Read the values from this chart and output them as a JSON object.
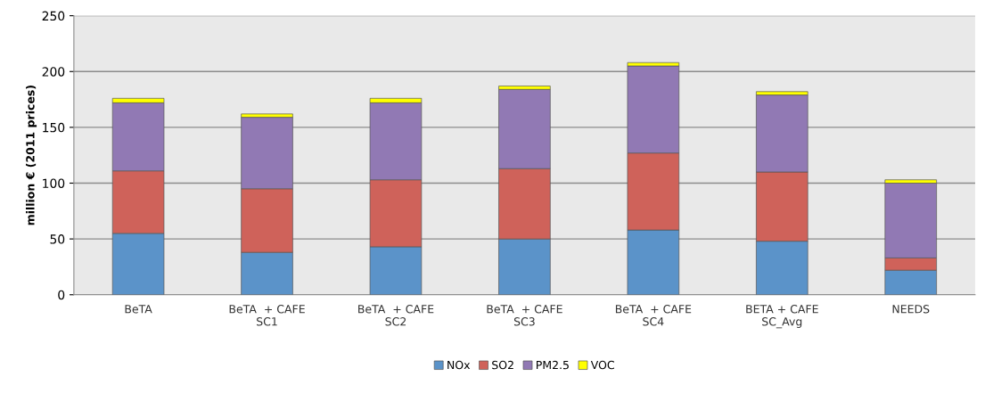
{
  "chart_data": {
    "type": "bar",
    "stacked": true,
    "ylabel": "million € (2011 prices)",
    "categories": [
      "BeTA",
      "BeTA  + CAFE\nSC1",
      "BeTA  + CAFE\nSC2",
      "BeTA  + CAFE\nSC3",
      "BeTA  + CAFE\nSC4",
      "BETA + CAFE\nSC_Avg",
      "NEEDS"
    ],
    "series": [
      {
        "name": "NOx",
        "color": "#5b93c9",
        "values": [
          55,
          38,
          43,
          50,
          58,
          48,
          22
        ]
      },
      {
        "name": "SO2",
        "color": "#cf625a",
        "values": [
          56,
          57,
          60,
          63,
          69,
          62,
          11
        ]
      },
      {
        "name": "PM2.5",
        "color": "#9179b4",
        "values": [
          61,
          64,
          69,
          71,
          78,
          69,
          67
        ]
      },
      {
        "name": "VOC",
        "color": "#ffff00",
        "values": [
          4,
          3,
          4,
          3,
          3,
          3,
          3
        ]
      }
    ],
    "ylim": [
      0,
      250
    ],
    "yticks": [
      0,
      50,
      100,
      150,
      200,
      250
    ],
    "grid": "y",
    "legend": "bottom"
  }
}
